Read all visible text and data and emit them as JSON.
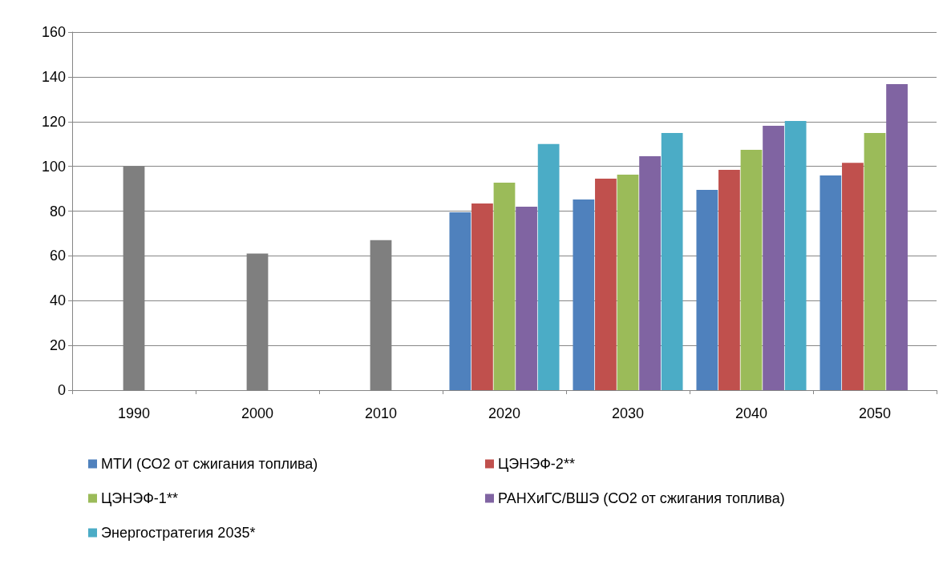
{
  "chart_data": {
    "type": "bar",
    "categories": [
      "1990",
      "2000",
      "2010",
      "2020",
      "2030",
      "2040",
      "2050"
    ],
    "series": [
      {
        "name": "МТИ (СО2 от сжигания топлива)",
        "color": "#4f81bd",
        "values": [
          null,
          null,
          null,
          79.5,
          85.2,
          89.5,
          95.9
        ]
      },
      {
        "name": "ЦЭНЭФ-2**",
        "color": "#c0504d",
        "values": [
          null,
          null,
          null,
          83.4,
          94.5,
          98.4,
          101.6
        ]
      },
      {
        "name": "ЦЭНЭФ-1**",
        "color": "#9bbb59",
        "values": [
          null,
          null,
          null,
          92.7,
          96.3,
          107.4,
          114.9
        ]
      },
      {
        "name": "РАНХиГС/ВШЭ (СО2 от сжигания топлива)",
        "color": "#8064a2",
        "values": [
          null,
          null,
          null,
          82,
          104.5,
          118.1,
          136.7
        ]
      },
      {
        "name": "Энергостратегия 2035*",
        "color": "#4bacc6",
        "values": [
          null,
          null,
          null,
          110,
          114.9,
          120.3,
          null
        ]
      },
      {
        "color": "#7f7f7f",
        "values": [
          100,
          61,
          67,
          null,
          null,
          null,
          null
        ]
      }
    ],
    "ylim": [
      0,
      160
    ],
    "yticks": [
      0,
      20,
      40,
      60,
      80,
      100,
      120,
      140,
      160
    ],
    "grid": "y",
    "legend": "bottom"
  }
}
